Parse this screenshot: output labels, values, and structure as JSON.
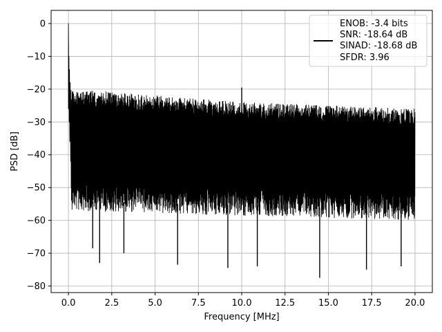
{
  "chart_data": {
    "type": "line",
    "title": "",
    "xlabel": "Frequency [MHz]",
    "ylabel": "PSD [dB]",
    "xlim": [
      -1.0,
      21.0
    ],
    "ylim": [
      -82,
      4
    ],
    "xticks": [
      0.0,
      2.5,
      5.0,
      7.5,
      10.0,
      12.5,
      15.0,
      17.5,
      20.0
    ],
    "xtick_labels": [
      "0.0",
      "2.5",
      "5.0",
      "7.5",
      "10.0",
      "12.5",
      "15.0",
      "17.5",
      "20.0"
    ],
    "yticks": [
      0,
      -10,
      -20,
      -30,
      -40,
      -50,
      -60,
      -70,
      -80
    ],
    "ytick_labels": [
      "0",
      "−10",
      "−20",
      "−30",
      "−40",
      "−50",
      "−60",
      "−70",
      "−80"
    ],
    "grid": true,
    "legend_position": "top-right",
    "series": [
      {
        "color": "#000000",
        "peak": {
          "x": 0.0,
          "y": 0
        },
        "near_dc_level": -20,
        "upper_envelope": {
          "x": [
            0.2,
            5.0,
            10.0,
            15.0,
            20.0
          ],
          "y": [
            -20,
            -22,
            -24,
            -25,
            -26
          ]
        },
        "typical_low": {
          "x": [
            0.2,
            20.0
          ],
          "y": [
            -54,
            -57
          ]
        },
        "deep_nulls": [
          {
            "x": 1.4,
            "y": -68.5
          },
          {
            "x": 1.8,
            "y": -73
          },
          {
            "x": 3.2,
            "y": -70
          },
          {
            "x": 6.3,
            "y": -73.5
          },
          {
            "x": 9.2,
            "y": -74.5
          },
          {
            "x": 10.9,
            "y": -74
          },
          {
            "x": 14.5,
            "y": -77.5
          },
          {
            "x": 17.2,
            "y": -75
          },
          {
            "x": 19.2,
            "y": -74
          }
        ],
        "spurs": [
          {
            "x": 10.0,
            "y": -19.5
          }
        ]
      }
    ],
    "legend": {
      "lines": [
        "ENOB: -3.4 bits",
        "SNR: -18.64 dB",
        "SINAD: -18.68 dB",
        "SFDR: 3.96"
      ]
    }
  }
}
